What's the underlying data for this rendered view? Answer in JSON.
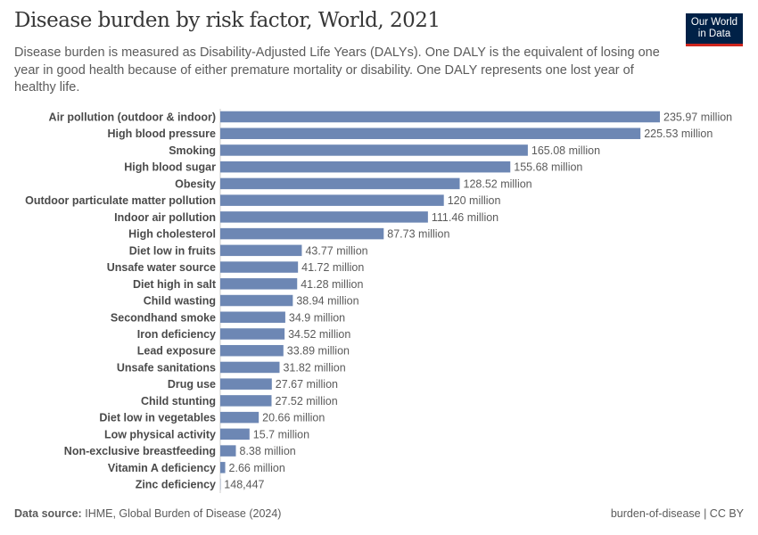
{
  "header": {
    "title": "Disease burden by risk factor, World, 2021",
    "subtitle": "Disease burden is measured as Disability-Adjusted Life Years (DALYs). One DALY is the equivalent of losing one year in good health because of either premature mortality or disability. One DALY represents one lost year of healthy life.",
    "logo": "Our World in Data"
  },
  "footer": {
    "source_label": "Data source:",
    "source": "IHME, Global Burden of Disease (2024)",
    "license": "burden-of-disease | CC BY"
  },
  "colors": {
    "bar": "#6d87b4",
    "logo_bg": "#002147",
    "logo_accent": "#ce261e"
  },
  "chart_data": {
    "type": "bar",
    "orientation": "horizontal",
    "unit": "DALYs",
    "categories": [
      "Air pollution (outdoor & indoor)",
      "High blood pressure",
      "Smoking",
      "High blood sugar",
      "Obesity",
      "Outdoor particulate matter pollution",
      "Indoor air pollution",
      "High cholesterol",
      "Diet low in fruits",
      "Unsafe water source",
      "Diet high in salt",
      "Child wasting",
      "Secondhand smoke",
      "Iron deficiency",
      "Lead exposure",
      "Unsafe sanitations",
      "Drug use",
      "Child stunting",
      "Diet low in vegetables",
      "Low physical activity",
      "Non-exclusive breastfeeding",
      "Vitamin A deficiency",
      "Zinc deficiency"
    ],
    "values": [
      235970000,
      225530000,
      165080000,
      155680000,
      128520000,
      120000000,
      111460000,
      87730000,
      43770000,
      41720000,
      41280000,
      38940000,
      34900000,
      34520000,
      33890000,
      31820000,
      27670000,
      27520000,
      20660000,
      15700000,
      8380000,
      2660000,
      148447
    ],
    "labels": [
      "235.97 million",
      "225.53 million",
      "165.08 million",
      "155.68 million",
      "128.52 million",
      "120 million",
      "111.46 million",
      "87.73 million",
      "43.77 million",
      "41.72 million",
      "41.28 million",
      "38.94 million",
      "34.9 million",
      "34.52 million",
      "33.89 million",
      "31.82 million",
      "27.67 million",
      "27.52 million",
      "20.66 million",
      "15.7 million",
      "8.38 million",
      "2.66 million",
      "148,447"
    ]
  }
}
